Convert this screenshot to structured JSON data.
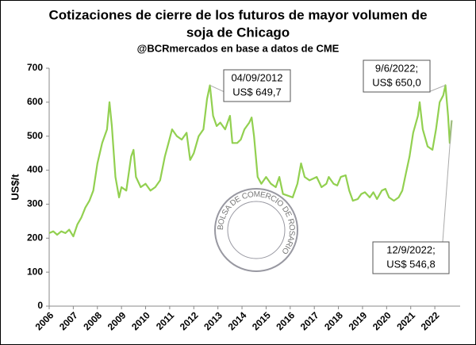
{
  "chart_data": {
    "type": "line",
    "title": [
      "Cotizaciones de cierre de los futuros de mayor volumen de",
      "soja de Chicago"
    ],
    "subtitle": "@BCRmercados en base a datos de CME",
    "y_label": "US$/t",
    "watermark": "BOLSA DE COMERCIO DE ROSARIO",
    "x": [
      2006.0,
      2006.17,
      2006.33,
      2006.5,
      2006.67,
      2006.83,
      2007.0,
      2007.17,
      2007.33,
      2007.5,
      2007.67,
      2007.83,
      2008.0,
      2008.2,
      2008.4,
      2008.5,
      2008.6,
      2008.75,
      2008.9,
      2009.0,
      2009.2,
      2009.4,
      2009.5,
      2009.6,
      2009.8,
      2010.0,
      2010.2,
      2010.4,
      2010.6,
      2010.8,
      2010.95,
      2011.1,
      2011.3,
      2011.5,
      2011.7,
      2011.85,
      2012.0,
      2012.2,
      2012.4,
      2012.55,
      2012.67,
      2012.8,
      2012.95,
      2013.1,
      2013.3,
      2013.5,
      2013.6,
      2013.8,
      2013.95,
      2014.1,
      2014.3,
      2014.4,
      2014.5,
      2014.65,
      2014.8,
      2015.0,
      2015.2,
      2015.4,
      2015.55,
      2015.7,
      2015.9,
      2016.1,
      2016.3,
      2016.45,
      2016.6,
      2016.8,
      2016.95,
      2017.1,
      2017.3,
      2017.5,
      2017.6,
      2017.8,
      2017.95,
      2018.1,
      2018.3,
      2018.45,
      2018.6,
      2018.8,
      2018.95,
      2019.1,
      2019.3,
      2019.45,
      2019.6,
      2019.8,
      2019.95,
      2020.1,
      2020.3,
      2020.5,
      2020.65,
      2020.8,
      2020.95,
      2021.1,
      2021.3,
      2021.37,
      2021.5,
      2021.7,
      2021.9,
      2022.05,
      2022.2,
      2022.35,
      2022.44,
      2022.55,
      2022.62,
      2022.7
    ],
    "series": [
      {
        "name": "Soja Chicago",
        "color": "#92d050",
        "values": [
          215,
          220,
          210,
          220,
          215,
          225,
          205,
          240,
          260,
          290,
          310,
          340,
          420,
          480,
          520,
          600,
          530,
          380,
          320,
          350,
          340,
          440,
          460,
          380,
          350,
          360,
          340,
          350,
          370,
          440,
          480,
          520,
          500,
          490,
          510,
          430,
          450,
          500,
          520,
          610,
          649.7,
          560,
          530,
          540,
          520,
          560,
          480,
          480,
          490,
          520,
          540,
          555,
          500,
          380,
          360,
          380,
          360,
          350,
          380,
          330,
          325,
          320,
          360,
          420,
          380,
          370,
          375,
          380,
          350,
          360,
          380,
          360,
          355,
          380,
          385,
          340,
          310,
          315,
          330,
          335,
          320,
          335,
          315,
          340,
          345,
          320,
          310,
          320,
          340,
          390,
          440,
          510,
          560,
          600,
          520,
          470,
          460,
          520,
          600,
          620,
          650.0,
          560,
          480,
          546.8
        ]
      }
    ],
    "annotations": [
      {
        "lines": [
          "04/09/2012",
          "US$ 649,7"
        ],
        "point": 40
      },
      {
        "lines": [
          "9/6/2022;",
          "US$ 650,0"
        ],
        "point": 100
      },
      {
        "lines": [
          "12/9/2022;",
          "US$ 546,8"
        ],
        "point": 103
      }
    ],
    "xlim": [
      2006,
      2023.05
    ],
    "xticks": [
      2006,
      2007,
      2008,
      2009,
      2010,
      2011,
      2012,
      2013,
      2014,
      2015,
      2016,
      2017,
      2018,
      2019,
      2020,
      2021,
      2022
    ],
    "ylim": [
      0,
      700
    ],
    "yticks": [
      0,
      100,
      200,
      300,
      400,
      500,
      600,
      700
    ],
    "grid": false
  }
}
